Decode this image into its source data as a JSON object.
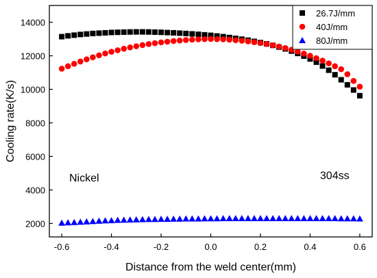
{
  "chart_data": {
    "type": "scatter",
    "xlabel": "Distance from the weld center(mm)",
    "ylabel": "Cooling rate(K/s)",
    "xlim": [
      -0.65,
      0.65
    ],
    "ylim": [
      1200,
      15000
    ],
    "xticks": [
      -0.6,
      -0.4,
      -0.2,
      0.0,
      0.2,
      0.4,
      0.6
    ],
    "xtick_labels": [
      "-0.6",
      "-0.4",
      "-0.2",
      "0.0",
      "0.2",
      "0.4",
      "0.6"
    ],
    "yticks": [
      2000,
      4000,
      6000,
      8000,
      10000,
      12000,
      14000
    ],
    "ytick_labels": [
      "2000",
      "4000",
      "6000",
      "8000",
      "10000",
      "12000",
      "14000"
    ],
    "legend_position": "top-right",
    "annotations": [
      {
        "text": "Nickel",
        "x": -0.57,
        "y": 4500
      },
      {
        "text": "304ss",
        "x": 0.44,
        "y": 4650
      }
    ],
    "series": [
      {
        "name": "26.7J/mm",
        "marker": "square",
        "color": "#000000",
        "x": [
          -0.6,
          -0.575,
          -0.55,
          -0.525,
          -0.5,
          -0.475,
          -0.45,
          -0.425,
          -0.4,
          -0.375,
          -0.35,
          -0.325,
          -0.3,
          -0.275,
          -0.25,
          -0.225,
          -0.2,
          -0.175,
          -0.15,
          -0.125,
          -0.1,
          -0.075,
          -0.05,
          -0.025,
          0.0,
          0.025,
          0.05,
          0.075,
          0.1,
          0.125,
          0.15,
          0.175,
          0.2,
          0.225,
          0.25,
          0.275,
          0.3,
          0.325,
          0.35,
          0.375,
          0.4,
          0.425,
          0.45,
          0.475,
          0.5,
          0.525,
          0.55,
          0.575,
          0.6
        ],
        "y": [
          13140,
          13190,
          13230,
          13270,
          13300,
          13330,
          13350,
          13370,
          13390,
          13400,
          13410,
          13420,
          13425,
          13425,
          13420,
          13410,
          13400,
          13385,
          13370,
          13350,
          13330,
          13305,
          13280,
          13250,
          13220,
          13180,
          13140,
          13090,
          13040,
          12990,
          12930,
          12860,
          12790,
          12710,
          12620,
          12520,
          12410,
          12280,
          12140,
          11980,
          11810,
          11620,
          11390,
          11140,
          10870,
          10570,
          10270,
          9960,
          9620
        ]
      },
      {
        "name": "40J/mm",
        "marker": "circle",
        "color": "#ff0000",
        "x": [
          -0.6,
          -0.575,
          -0.55,
          -0.525,
          -0.5,
          -0.475,
          -0.45,
          -0.425,
          -0.4,
          -0.375,
          -0.35,
          -0.325,
          -0.3,
          -0.275,
          -0.25,
          -0.225,
          -0.2,
          -0.175,
          -0.15,
          -0.125,
          -0.1,
          -0.075,
          -0.05,
          -0.025,
          0.0,
          0.025,
          0.05,
          0.075,
          0.1,
          0.125,
          0.15,
          0.175,
          0.2,
          0.225,
          0.25,
          0.275,
          0.3,
          0.325,
          0.35,
          0.375,
          0.4,
          0.425,
          0.45,
          0.475,
          0.5,
          0.525,
          0.55,
          0.575,
          0.6
        ],
        "y": [
          11230,
          11380,
          11520,
          11660,
          11790,
          11910,
          12030,
          12140,
          12240,
          12330,
          12420,
          12500,
          12570,
          12640,
          12700,
          12750,
          12800,
          12840,
          12880,
          12910,
          12940,
          12960,
          12980,
          12990,
          13000,
          12990,
          12980,
          12960,
          12930,
          12900,
          12860,
          12810,
          12760,
          12700,
          12630,
          12550,
          12460,
          12360,
          12250,
          12130,
          12000,
          11860,
          11710,
          11550,
          11380,
          11200,
          10900,
          10500,
          10160
        ]
      },
      {
        "name": "80J/mm",
        "marker": "triangle",
        "color": "#0000ff",
        "x": [
          -0.6,
          -0.575,
          -0.55,
          -0.525,
          -0.5,
          -0.475,
          -0.45,
          -0.425,
          -0.4,
          -0.375,
          -0.35,
          -0.325,
          -0.3,
          -0.275,
          -0.25,
          -0.225,
          -0.2,
          -0.175,
          -0.15,
          -0.125,
          -0.1,
          -0.075,
          -0.05,
          -0.025,
          0.0,
          0.025,
          0.05,
          0.075,
          0.1,
          0.125,
          0.15,
          0.175,
          0.2,
          0.225,
          0.25,
          0.275,
          0.3,
          0.325,
          0.35,
          0.375,
          0.4,
          0.425,
          0.45,
          0.475,
          0.5,
          0.525,
          0.55,
          0.575,
          0.6
        ],
        "y": [
          2030,
          2050,
          2070,
          2090,
          2110,
          2130,
          2150,
          2170,
          2180,
          2200,
          2210,
          2220,
          2230,
          2240,
          2250,
          2250,
          2260,
          2260,
          2270,
          2270,
          2280,
          2280,
          2280,
          2290,
          2290,
          2290,
          2300,
          2300,
          2300,
          2300,
          2300,
          2300,
          2300,
          2300,
          2300,
          2300,
          2300,
          2300,
          2300,
          2300,
          2300,
          2300,
          2300,
          2300,
          2300,
          2290,
          2290,
          2290,
          2280
        ]
      }
    ]
  }
}
